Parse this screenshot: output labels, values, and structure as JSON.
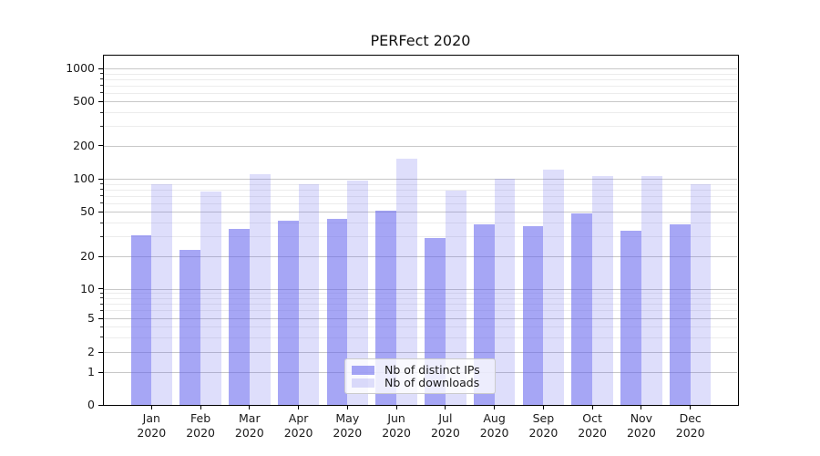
{
  "title": "PERFect 2020",
  "legend": {
    "items": [
      {
        "id": "ips",
        "label": "Nb of distinct IPs"
      },
      {
        "id": "downloads",
        "label": "Nb of downloads"
      }
    ]
  },
  "axes": {
    "y_ticks": [
      1000,
      500,
      200,
      100,
      50,
      20,
      10,
      5,
      2,
      1,
      0
    ],
    "y_minor_ticks": [
      900,
      800,
      700,
      600,
      400,
      300,
      90,
      80,
      70,
      60,
      40,
      30,
      9,
      8,
      7,
      6,
      4,
      3
    ],
    "x_ticks": [
      {
        "month": "Jan",
        "year": "2020"
      },
      {
        "month": "Feb",
        "year": "2020"
      },
      {
        "month": "Mar",
        "year": "2020"
      },
      {
        "month": "Apr",
        "year": "2020"
      },
      {
        "month": "May",
        "year": "2020"
      },
      {
        "month": "Jun",
        "year": "2020"
      },
      {
        "month": "Jul",
        "year": "2020"
      },
      {
        "month": "Aug",
        "year": "2020"
      },
      {
        "month": "Sep",
        "year": "2020"
      },
      {
        "month": "Oct",
        "year": "2020"
      },
      {
        "month": "Nov",
        "year": "2020"
      },
      {
        "month": "Dec",
        "year": "2020"
      }
    ]
  },
  "colors": {
    "ips": "rgba(99,99,237,0.57)",
    "downloads": "rgba(99,99,237,0.21)",
    "grid_major": "#c8c8c8",
    "grid_minor": "#ececec",
    "spine": "#000000",
    "text": "#1a1a1a",
    "legend_border": "#cccccc",
    "legend_bg": "rgba(255,255,255,0.8)"
  },
  "chart_data": {
    "type": "bar",
    "title": "PERFect 2020",
    "categories": [
      "Jan 2020",
      "Feb 2020",
      "Mar 2020",
      "Apr 2020",
      "May 2020",
      "Jun 2020",
      "Jul 2020",
      "Aug 2020",
      "Sep 2020",
      "Oct 2020",
      "Nov 2020",
      "Dec 2020"
    ],
    "series": [
      {
        "name": "Nb of distinct IPs",
        "values": [
          31,
          23,
          35,
          42,
          43,
          51,
          29,
          39,
          37,
          49,
          34,
          39
        ]
      },
      {
        "name": "Nb of downloads",
        "values": [
          90,
          77,
          110,
          89,
          96,
          152,
          78,
          100,
          121,
          106,
          106,
          89
        ]
      }
    ],
    "yscale": "symlog",
    "y_tick_values": [
      0,
      1,
      2,
      5,
      10,
      20,
      50,
      100,
      200,
      500,
      1000
    ],
    "ylim": [
      0,
      1400
    ],
    "xlabel": "",
    "ylabel": "",
    "grid": true,
    "legend_position": "lower center"
  }
}
